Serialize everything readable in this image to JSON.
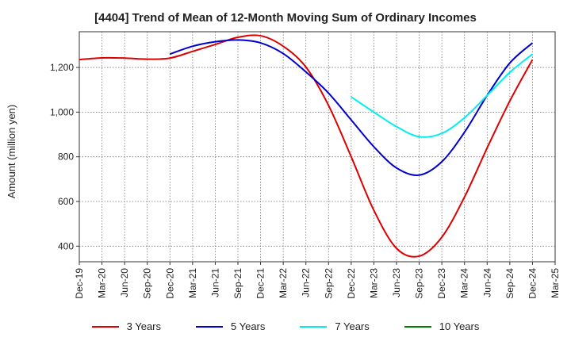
{
  "chart_data": {
    "type": "line",
    "title": "[4404]  Trend of Mean of 12-Month Moving Sum of Ordinary Incomes",
    "xlabel": "",
    "ylabel": "Amount (million yen)",
    "categories": [
      "Dec-19",
      "Mar-20",
      "Jun-20",
      "Sep-20",
      "Dec-20",
      "Mar-21",
      "Jun-21",
      "Sep-21",
      "Dec-21",
      "Mar-22",
      "Jun-22",
      "Sep-22",
      "Dec-22",
      "Mar-23",
      "Jun-23",
      "Sep-23",
      "Dec-23",
      "Mar-24",
      "Jun-24",
      "Sep-24",
      "Dec-24",
      "Mar-25"
    ],
    "ylim": [
      330,
      1360
    ],
    "yticks": [
      400,
      600,
      800,
      1000,
      1200
    ],
    "ytick_labels": [
      "400",
      "600",
      "800",
      "1,000",
      "1,200"
    ],
    "grid": true,
    "legend_position": "bottom",
    "series": [
      {
        "name": "3 Years",
        "color": "#dd0000",
        "values": [
          1235,
          1243,
          1242,
          1237,
          1242,
          1272,
          1303,
          1335,
          1342,
          1295,
          1202,
          1030,
          800,
          560,
          390,
          355,
          440,
          620,
          840,
          1050,
          1235,
          null
        ]
      },
      {
        "name": "5 Years",
        "color": "#0000cc",
        "values": [
          null,
          null,
          null,
          null,
          1260,
          1295,
          1315,
          1323,
          1310,
          1262,
          1180,
          1085,
          965,
          845,
          750,
          718,
          778,
          910,
          1075,
          1220,
          1310,
          null
        ]
      },
      {
        "name": "7 Years",
        "color": "#00eeee",
        "values": [
          null,
          null,
          null,
          null,
          null,
          null,
          null,
          null,
          null,
          null,
          null,
          null,
          1068,
          1000,
          935,
          890,
          905,
          975,
          1075,
          1178,
          1260,
          null
        ]
      },
      {
        "name": "10 Years",
        "color": "#008000",
        "values": [
          null,
          null,
          null,
          null,
          null,
          null,
          null,
          null,
          null,
          null,
          null,
          null,
          null,
          null,
          null,
          null,
          null,
          null,
          null,
          null,
          null,
          null
        ]
      }
    ]
  }
}
